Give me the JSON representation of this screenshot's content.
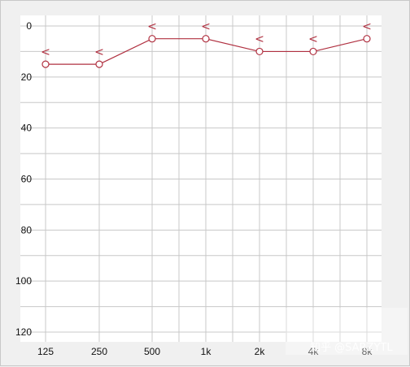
{
  "chart_data": {
    "type": "line",
    "title": "",
    "xlabel": "",
    "ylabel": "",
    "x_categories": [
      "125",
      "250",
      "500",
      "1k",
      "2k",
      "4k",
      "8k"
    ],
    "y_ticks": [
      0,
      20,
      40,
      60,
      80,
      100,
      120
    ],
    "ylim": [
      0,
      120
    ],
    "y_inverted": true,
    "grid": true,
    "series": [
      {
        "name": "",
        "marker": "circle",
        "color": "#b03040",
        "values": [
          15,
          15,
          5,
          5,
          10,
          10,
          5
        ]
      }
    ],
    "annotations": {
      "symbol": "<",
      "values": [
        10,
        10,
        0,
        0,
        5,
        5,
        0
      ]
    }
  },
  "watermark": "知乎 @SARZYTL",
  "colors": {
    "plot_bg": "#ffffff",
    "grid": "#c8c8c8",
    "series": "#b03040"
  }
}
